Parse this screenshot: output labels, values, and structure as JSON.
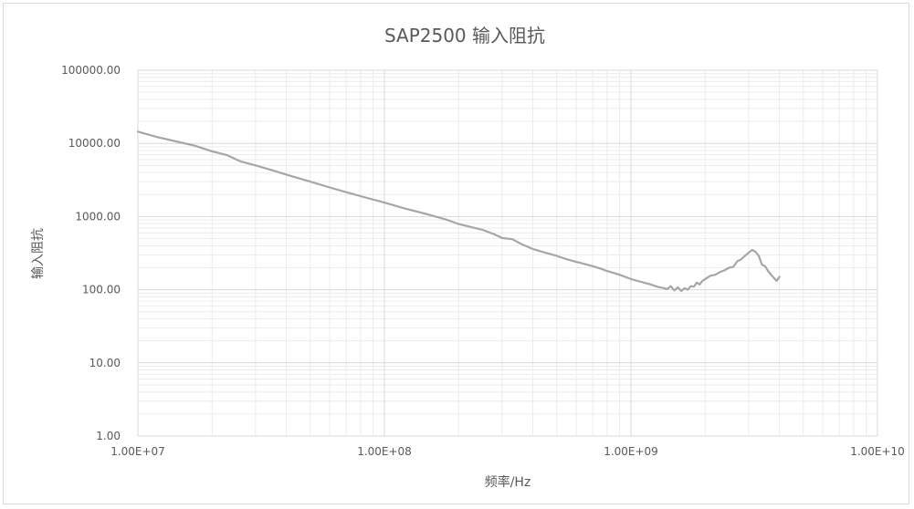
{
  "chart_data": {
    "type": "line",
    "title": "SAP2500 输入阻抗",
    "xlabel": "频率/Hz",
    "ylabel": "输入阻抗",
    "x_scale": "log",
    "y_scale": "log",
    "xlim": [
      10000000,
      10000000000
    ],
    "ylim": [
      1,
      100000
    ],
    "grid": true,
    "legend": "none",
    "colors": {
      "line": "#a6a6a6",
      "grid_major": "#d9d9d9",
      "grid_minor": "#ececec",
      "text": "#595959"
    },
    "x_tick_labels": [
      "1.00E+07",
      "1.00E+08",
      "1.00E+09",
      "1.00E+10"
    ],
    "y_tick_labels": [
      "1.00",
      "10.00",
      "100.00",
      "1000.00",
      "10000.00",
      "100000.00"
    ],
    "series": [
      {
        "x": [
          10000000,
          12000000,
          14000000,
          17000000,
          20000000,
          23000000,
          26000000,
          30000000,
          35000000,
          40000000,
          50000000,
          60000000,
          70000000,
          80000000,
          100000000,
          120000000,
          150000000,
          180000000,
          200000000,
          250000000,
          280000000,
          300000000,
          330000000,
          360000000,
          400000000,
          450000000,
          500000000,
          550000000,
          600000000,
          650000000,
          700000000,
          750000000,
          800000000,
          900000000,
          1000000000,
          1100000000,
          1200000000,
          1300000000,
          1350000000,
          1400000000,
          1450000000,
          1500000000,
          1550000000,
          1600000000,
          1650000000,
          1700000000,
          1750000000,
          1800000000,
          1850000000,
          1900000000,
          1950000000,
          2000000000,
          2100000000,
          2200000000,
          2300000000,
          2400000000,
          2500000000,
          2600000000,
          2700000000,
          2800000000,
          2900000000,
          3000000000,
          3100000000,
          3200000000,
          3300000000,
          3400000000,
          3500000000,
          3600000000,
          3700000000,
          3800000000,
          3900000000,
          4000000000
        ],
        "y": [
          14500,
          12200,
          10800,
          9300,
          7800,
          6900,
          5700,
          5000,
          4300,
          3750,
          3000,
          2500,
          2150,
          1900,
          1550,
          1300,
          1070,
          900,
          790,
          660,
          570,
          510,
          490,
          420,
          360,
          320,
          290,
          260,
          240,
          225,
          210,
          195,
          180,
          160,
          140,
          128,
          118,
          108,
          106,
          102,
          112,
          98,
          108,
          96,
          105,
          100,
          112,
          110,
          125,
          118,
          132,
          140,
          155,
          160,
          175,
          185,
          200,
          205,
          245,
          260,
          290,
          320,
          350,
          330,
          290,
          220,
          210,
          180,
          160,
          145,
          132,
          150
        ]
      }
    ]
  }
}
